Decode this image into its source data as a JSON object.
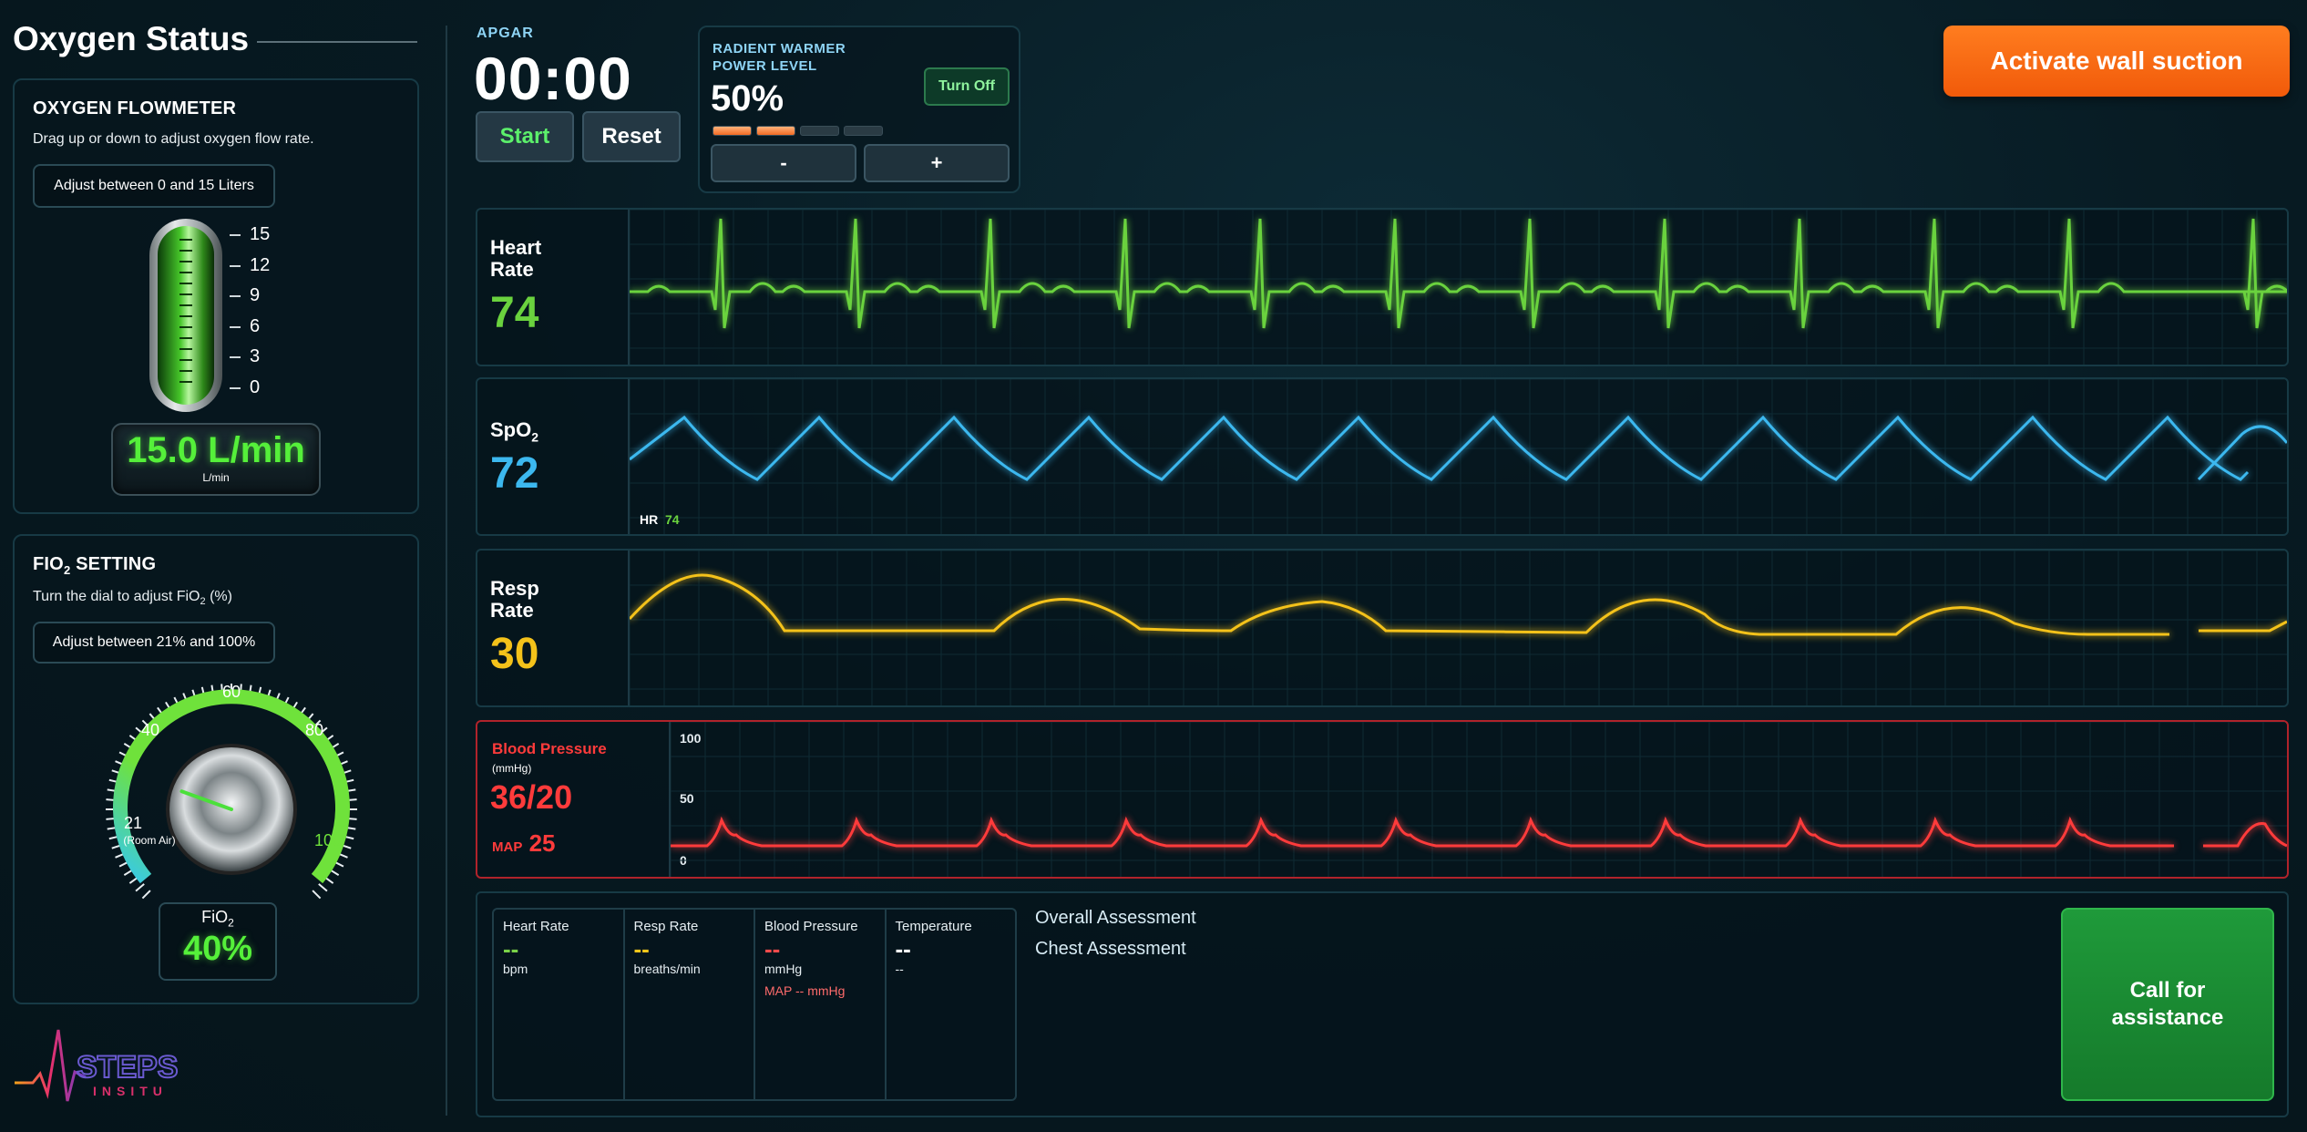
{
  "left": {
    "title": "Oxygen Status",
    "flowmeter": {
      "title": "OXYGEN FLOWMETER",
      "description": "Drag up or down to adjust oxygen flow rate.",
      "range_hint": "Adjust between 0 and 15 Liters",
      "scale": [
        "15",
        "12",
        "9",
        "6",
        "3",
        "0"
      ],
      "value": "15.0 L/min",
      "unit": "L/min"
    },
    "fio2": {
      "title_main": "FIO",
      "title_sub": "2",
      "title_rest": " SETTING",
      "description_main": "Turn the dial to adjust FiO",
      "description_sub": "2",
      "description_rest": " (%)",
      "range_hint": "Adjust between 21% and 100%",
      "dial_labels": {
        "l60": "60",
        "l40": "40",
        "l80": "80",
        "l21": "21",
        "l21_sub": "(Room Air)",
        "l100": "100"
      },
      "readout_label_main": "FiO",
      "readout_label_sub": "2",
      "value": "40%",
      "level_percent": 40
    },
    "logo": {
      "text": "STEPS",
      "sub": "INSITU"
    }
  },
  "apgar": {
    "label": "APGAR",
    "time": "00:00",
    "start_label": "Start",
    "reset_label": "Reset"
  },
  "warmer": {
    "label_line1": "RADIENT WARMER",
    "label_line2": "POWER LEVEL",
    "value": "50%",
    "bars_on": 2,
    "bars_total": 4,
    "turn_off_label": "Turn Off",
    "minus_label": "-",
    "plus_label": "+"
  },
  "suction_label": "Activate wall suction",
  "monitors": {
    "hr": {
      "label_line1": "Heart",
      "label_line2": "Rate",
      "value": "74"
    },
    "spo2": {
      "label_main": "SpO",
      "label_sub": "2",
      "value": "72",
      "hr_tag": "HR",
      "hr_value": "74"
    },
    "rr": {
      "label_line1": "Resp",
      "label_line2": "Rate",
      "value": "30"
    },
    "bp": {
      "label": "Blood Pressure",
      "unit": "(mmHg)",
      "value": "36/20",
      "map_label": "MAP",
      "map_value": "25",
      "axis": [
        "100",
        "50",
        "0"
      ]
    }
  },
  "bottom": {
    "columns": [
      {
        "head": "Heart Rate",
        "value": "--",
        "unit": "bpm",
        "color": "#7ad248"
      },
      {
        "head": "Resp Rate",
        "value": "--",
        "unit": "breaths/min",
        "color": "#f5c71a"
      },
      {
        "head": "Blood Pressure",
        "value": "--",
        "unit": "mmHg",
        "color": "#ff4b4b",
        "map": "MAP -- mmHg"
      },
      {
        "head": "Temperature",
        "value": "--",
        "unit": "--",
        "color": "#ffffff"
      }
    ],
    "overall_assessment": "Overall Assessment",
    "chest_assessment": "Chest Assessment",
    "assist_line1": "Call for",
    "assist_line2": "assistance"
  },
  "colors": {
    "hr": "#6ad23e",
    "spo2": "#3cb8ef",
    "rr": "#f4c21a",
    "bp": "#ff3b3b",
    "suction": "#f5650f",
    "assist": "#1c8a34"
  }
}
